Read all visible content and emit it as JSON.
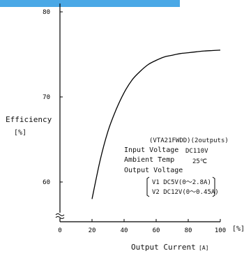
{
  "chart_data": {
    "type": "line",
    "ylabel": "Efficiency",
    "yunit": "[%]",
    "xlabel": "Output Current",
    "xunit": "[A]",
    "x_tick_unit": "[%]",
    "xlim": [
      0,
      100
    ],
    "ylim": [
      55,
      80
    ],
    "y_axis_break": true,
    "x_ticks": [
      "0",
      "20",
      "40",
      "60",
      "80",
      "100"
    ],
    "y_ticks": [
      "60",
      "70",
      "80"
    ],
    "series": [
      {
        "x": [
          20,
          25,
          30,
          35,
          40,
          45,
          50,
          55,
          60,
          65,
          70,
          75,
          80,
          85,
          90,
          95,
          100
        ],
        "y": [
          58.0,
          62.5,
          66.0,
          68.5,
          70.5,
          72.0,
          73.0,
          73.8,
          74.3,
          74.7,
          74.9,
          75.1,
          75.2,
          75.3,
          75.4,
          75.45,
          75.5
        ]
      }
    ],
    "annotations": {
      "model": "(VTA21FWDD)(2outputs)",
      "input_voltage_label": "Input Voltage",
      "input_voltage_value": "DC110V",
      "ambient_temp_label": "Ambient Temp",
      "ambient_temp_value": "25℃",
      "output_voltage_label": "Output Voltage",
      "v1": "V1 DC5V(0～2.8A)",
      "v2": "V2 DC12V(0～0.45A)"
    },
    "colors": {
      "line": "#000000",
      "banner": "#4aa8e6"
    }
  }
}
